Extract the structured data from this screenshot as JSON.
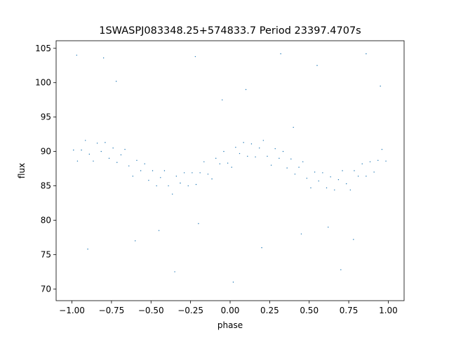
{
  "chart_data": {
    "type": "scatter",
    "title": "1SWASPJ083348.25+574833.7 Period 23397.4707s",
    "xlabel": "phase",
    "ylabel": "flux",
    "color": "#1f77b4",
    "xlim": [
      -1.1,
      1.1
    ],
    "ylim": [
      68.3,
      106.1
    ],
    "xticks": [
      {
        "value": -1,
        "label": "−1.00"
      },
      {
        "value": -0.75,
        "label": "−0.75"
      },
      {
        "value": -0.5,
        "label": "−0.50"
      },
      {
        "value": -0.25,
        "label": "−0.25"
      },
      {
        "value": 0,
        "label": "0.00"
      },
      {
        "value": 0.25,
        "label": "0.25"
      },
      {
        "value": 0.5,
        "label": "0.50"
      },
      {
        "value": 0.75,
        "label": "0.75"
      },
      {
        "value": 1,
        "label": "1.00"
      }
    ],
    "yticks": [
      70,
      75,
      80,
      85,
      90,
      95,
      100,
      105
    ],
    "x": [
      -0.99,
      -0.965,
      -0.94,
      -0.915,
      -0.89,
      -0.865,
      -0.84,
      -0.815,
      -0.79,
      -0.765,
      -0.74,
      -0.715,
      -0.69,
      -0.665,
      -0.64,
      -0.615,
      -0.59,
      -0.565,
      -0.54,
      -0.515,
      -0.49,
      -0.465,
      -0.44,
      -0.415,
      -0.39,
      -0.365,
      -0.34,
      -0.315,
      -0.29,
      -0.265,
      -0.24,
      -0.215,
      -0.19,
      -0.165,
      -0.14,
      -0.115,
      -0.09,
      -0.065,
      -0.04,
      -0.015,
      0.01,
      0.035,
      0.06,
      0.085,
      0.11,
      0.135,
      0.16,
      0.185,
      0.21,
      0.235,
      0.26,
      0.285,
      0.31,
      0.335,
      0.36,
      0.385,
      0.41,
      0.435,
      0.46,
      0.485,
      0.51,
      0.535,
      0.56,
      0.585,
      0.61,
      0.635,
      0.66,
      0.685,
      0.71,
      0.735,
      0.76,
      0.785,
      0.81,
      0.835,
      0.86,
      0.885,
      0.91,
      0.935,
      0.96,
      0.985,
      -0.97,
      -0.8,
      -0.72,
      -0.6,
      -0.45,
      -0.35,
      -0.2,
      -0.05,
      0.1,
      0.2,
      0.32,
      0.45,
      0.55,
      0.62,
      0.7,
      0.78,
      0.86,
      0.95,
      -0.9,
      0.02,
      -0.22,
      0.4
    ],
    "values": [
      90.2,
      88.6,
      90.2,
      91.6,
      89.6,
      88.6,
      91.2,
      90.0,
      91.3,
      89.0,
      90.5,
      88.4,
      89.5,
      90.3,
      87.9,
      86.4,
      88.7,
      87.2,
      88.2,
      85.8,
      87.2,
      85.0,
      86.2,
      87.2,
      85.0,
      83.8,
      86.4,
      85.4,
      86.9,
      85.0,
      86.9,
      85.2,
      86.9,
      88.5,
      86.7,
      86.0,
      89.0,
      88.2,
      90.0,
      88.3,
      87.7,
      90.6,
      89.7,
      91.3,
      89.3,
      91.1,
      89.2,
      90.5,
      91.6,
      89.3,
      88.0,
      90.4,
      89.0,
      90.0,
      87.6,
      88.9,
      86.7,
      87.7,
      88.5,
      86.1,
      84.7,
      87.0,
      85.7,
      86.9,
      84.7,
      86.3,
      84.4,
      85.9,
      87.2,
      85.3,
      84.4,
      87.2,
      86.4,
      88.2,
      86.4,
      88.5,
      87.0,
      88.7,
      90.3,
      88.6,
      104.0,
      103.6,
      100.2,
      77.0,
      78.5,
      72.5,
      79.5,
      97.5,
      99.0,
      76.0,
      104.2,
      78.0,
      102.5,
      79.0,
      72.8,
      77.2,
      104.2,
      99.5,
      75.8,
      71.0,
      103.8,
      93.5
    ]
  }
}
